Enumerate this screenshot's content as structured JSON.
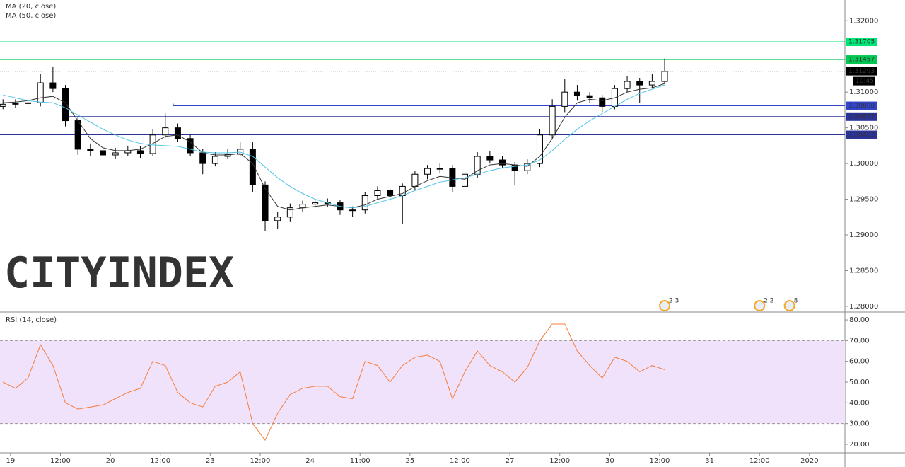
{
  "chart_data": [
    {
      "type": "candlestick",
      "xlim": [
        -0.21,
        16.71
      ],
      "ylim": [
        1.2793,
        1.3229
      ],
      "yticks": [
        {
          "value": 1.32,
          "label": "1.32000"
        },
        {
          "value": 1.31,
          "label": "1.31000"
        },
        {
          "value": 1.305,
          "label": "1.30500"
        },
        {
          "value": 1.3,
          "label": "1.30000"
        },
        {
          "value": 1.295,
          "label": "1.29500"
        },
        {
          "value": 1.29,
          "label": "1.29000"
        },
        {
          "value": 1.285,
          "label": "1.28500"
        },
        {
          "value": 1.28,
          "label": "1.28000"
        }
      ],
      "grid": false,
      "x": [
        -0.15,
        0.1,
        0.35,
        0.6,
        0.85,
        1.1,
        1.35,
        1.6,
        1.85,
        2.1,
        2.35,
        2.6,
        2.85,
        3.1,
        3.35,
        3.6,
        3.85,
        4.1,
        4.35,
        4.6,
        4.85,
        5.1,
        5.35,
        5.6,
        5.85,
        6.1,
        6.35,
        6.6,
        6.85,
        7.1,
        7.35,
        7.6,
        7.85,
        8.1,
        8.35,
        8.6,
        8.85,
        9.1,
        9.35,
        9.6,
        9.85,
        10.1,
        10.35,
        10.6,
        10.85,
        11.1,
        11.35,
        11.6,
        11.85,
        12.1,
        12.35,
        12.6,
        12.85,
        13.1
      ],
      "open": [
        1.308,
        1.3083,
        1.3084,
        1.3085,
        1.3113,
        1.3105,
        1.306,
        1.302,
        1.3018,
        1.3012,
        1.3015,
        1.3018,
        1.3014,
        1.304,
        1.305,
        1.3035,
        1.3015,
        1.3,
        1.301,
        1.3013,
        1.302,
        1.297,
        1.292,
        1.2925,
        1.2938,
        1.2943,
        1.2945,
        1.2945,
        1.2935,
        1.2935,
        1.2955,
        1.2962,
        1.2955,
        1.2968,
        1.2985,
        1.2993,
        1.2993,
        1.2968,
        1.2985,
        1.301,
        1.3005,
        1.2998,
        1.299,
        1.3,
        1.304,
        1.308,
        1.31,
        1.3095,
        1.3092,
        1.308,
        1.3105,
        1.3115,
        1.311,
        1.3115
      ],
      "high": [
        1.309,
        1.309,
        1.3092,
        1.3125,
        1.3135,
        1.311,
        1.3065,
        1.3028,
        1.3024,
        1.3022,
        1.3025,
        1.3024,
        1.3048,
        1.307,
        1.3056,
        1.304,
        1.302,
        1.3016,
        1.302,
        1.303,
        1.303,
        1.2975,
        1.2932,
        1.2944,
        1.2948,
        1.295,
        1.2951,
        1.2949,
        1.294,
        1.296,
        1.2968,
        1.2966,
        1.2972,
        1.299,
        1.2998,
        1.3,
        1.2998,
        1.299,
        1.3016,
        1.3018,
        1.301,
        1.3002,
        1.3006,
        1.3048,
        1.309,
        1.3118,
        1.311,
        1.31,
        1.3096,
        1.311,
        1.3122,
        1.312,
        1.3125,
        1.3147
      ],
      "low": [
        1.3076,
        1.3078,
        1.3079,
        1.308,
        1.31,
        1.3052,
        1.3012,
        1.301,
        1.3,
        1.3006,
        1.301,
        1.3008,
        1.301,
        1.3036,
        1.303,
        1.301,
        1.2985,
        1.2996,
        1.3006,
        1.301,
        1.296,
        1.2905,
        1.2908,
        1.2918,
        1.2932,
        1.2938,
        1.2939,
        1.2928,
        1.2925,
        1.293,
        1.295,
        1.2948,
        1.2915,
        1.2962,
        1.2978,
        1.2986,
        1.296,
        1.2962,
        1.298,
        1.3,
        1.2993,
        1.297,
        1.2985,
        1.2995,
        1.3035,
        1.3072,
        1.3088,
        1.3085,
        1.3072,
        1.3076,
        1.31,
        1.3085,
        1.3105,
        1.3112
      ],
      "close": [
        1.3083,
        1.3084,
        1.3085,
        1.3113,
        1.3105,
        1.306,
        1.302,
        1.3018,
        1.3012,
        1.3015,
        1.3018,
        1.3014,
        1.304,
        1.305,
        1.3035,
        1.3015,
        1.3,
        1.301,
        1.3013,
        1.302,
        1.297,
        1.292,
        1.2925,
        1.2938,
        1.2943,
        1.2945,
        1.2945,
        1.2935,
        1.2935,
        1.2955,
        1.2962,
        1.2955,
        1.2968,
        1.2985,
        1.2993,
        1.2993,
        1.2968,
        1.2985,
        1.301,
        1.3005,
        1.2998,
        1.299,
        1.3,
        1.304,
        1.308,
        1.31,
        1.3095,
        1.3092,
        1.308,
        1.3105,
        1.3115,
        1.311,
        1.3115,
        1.3129
      ],
      "up_color": "#ffffff",
      "down_color": "#000000",
      "series": [
        {
          "name": "MA (20, close)",
          "color": "#333333",
          "values": [
            1.3085,
            1.3086,
            1.3088,
            1.3092,
            1.3094,
            1.3085,
            1.306,
            1.3035,
            1.3022,
            1.3018,
            1.3018,
            1.302,
            1.3028,
            1.3038,
            1.304,
            1.303,
            1.3015,
            1.3012,
            1.3012,
            1.3014,
            1.3,
            1.2965,
            1.294,
            1.2935,
            1.2938,
            1.294,
            1.2942,
            1.294,
            1.2938,
            1.2942,
            1.295,
            1.2954,
            1.2958,
            1.2968,
            1.2976,
            1.2982,
            1.298,
            1.2978,
            1.299,
            1.2998,
            1.3,
            1.2998,
            1.2996,
            1.301,
            1.3035,
            1.3065,
            1.3085,
            1.309,
            1.3088,
            1.3092,
            1.31,
            1.3104,
            1.3106,
            1.3112
          ]
        },
        {
          "name": "MA (50, close)",
          "color": "#4fc3e8",
          "values": [
            1.3096,
            1.3092,
            1.3088,
            1.3086,
            1.3085,
            1.3078,
            1.3068,
            1.3058,
            1.3048,
            1.304,
            1.3033,
            1.3028,
            1.3026,
            1.3025,
            1.3024,
            1.302,
            1.3016,
            1.3015,
            1.3015,
            1.3016,
            1.301,
            1.2995,
            1.298,
            1.2968,
            1.2958,
            1.295,
            1.2945,
            1.294,
            1.2938,
            1.294,
            1.2945,
            1.295,
            1.2955,
            1.2962,
            1.2968,
            1.2974,
            1.2977,
            1.298,
            1.2985,
            1.299,
            1.2994,
            1.2996,
            1.2998,
            1.3005,
            1.3018,
            1.3034,
            1.3048,
            1.306,
            1.307,
            1.308,
            1.309,
            1.3098,
            1.3104,
            1.311
          ]
        }
      ],
      "levels": [
        {
          "value": 1.31705,
          "color": "#00e676"
        },
        {
          "value": 1.31457,
          "color": "#00c853"
        },
        {
          "value": 1.30808,
          "color": "#3344cc",
          "x_start": 3.26
        },
        {
          "value": 1.30657,
          "color": "#2a3399",
          "x_start": 1.13
        },
        {
          "value": 1.30402,
          "color": "#2a3399"
        }
      ],
      "last": 1.31293,
      "countdown": "10:45",
      "events": [
        {
          "x": 13.1,
          "label": "2 3"
        },
        {
          "x": 15.0,
          "label": "2 2"
        },
        {
          "x": 15.6,
          "label": "8"
        }
      ]
    },
    {
      "type": "line",
      "xlim": [
        -0.21,
        16.71
      ],
      "ylim": [
        15.9,
        83.1
      ],
      "yticks": [
        {
          "value": 80,
          "label": "80.00"
        },
        {
          "value": 70,
          "label": "70.00"
        },
        {
          "value": 60,
          "label": "60.00"
        },
        {
          "value": 50,
          "label": "50.00"
        },
        {
          "value": 40,
          "label": "40.00"
        },
        {
          "value": 30,
          "label": "30.00"
        },
        {
          "value": 20,
          "label": "20.00"
        }
      ],
      "band": [
        30,
        70
      ],
      "band_color": "#f1e2fb",
      "xticks": [
        {
          "value": 0,
          "label": "19"
        },
        {
          "value": 1,
          "label": "12:00"
        },
        {
          "value": 2,
          "label": "20"
        },
        {
          "value": 3,
          "label": "12:00"
        },
        {
          "value": 4,
          "label": "23"
        },
        {
          "value": 5,
          "label": "12:00"
        },
        {
          "value": 6,
          "label": "24"
        },
        {
          "value": 7,
          "label": "11:00"
        },
        {
          "value": 8,
          "label": "25"
        },
        {
          "value": 9,
          "label": "12:00"
        },
        {
          "value": 10,
          "label": "27"
        },
        {
          "value": 11,
          "label": "12:00"
        },
        {
          "value": 12,
          "label": "30"
        },
        {
          "value": 13,
          "label": "12:00"
        },
        {
          "value": 14,
          "label": "31"
        },
        {
          "value": 15,
          "label": "12:00"
        },
        {
          "value": 16,
          "label": "2020"
        }
      ],
      "x": [
        -0.15,
        0.1,
        0.35,
        0.6,
        0.85,
        1.1,
        1.35,
        1.6,
        1.85,
        2.1,
        2.35,
        2.6,
        2.85,
        3.1,
        3.35,
        3.6,
        3.85,
        4.1,
        4.35,
        4.6,
        4.85,
        5.1,
        5.35,
        5.6,
        5.85,
        6.1,
        6.35,
        6.6,
        6.85,
        7.1,
        7.35,
        7.6,
        7.85,
        8.1,
        8.35,
        8.6,
        8.85,
        9.1,
        9.35,
        9.6,
        9.85,
        10.1,
        10.35,
        10.6,
        10.85,
        11.1,
        11.35,
        11.6,
        11.85,
        12.1,
        12.35,
        12.6,
        12.85,
        13.1
      ],
      "series": [
        {
          "name": "RSI (14, close)",
          "color": "#f57c3a",
          "values": [
            50,
            47,
            52,
            68,
            58,
            40,
            37,
            38,
            39,
            42,
            45,
            47,
            60,
            58,
            45,
            40,
            38,
            48,
            50,
            55,
            30,
            22,
            35,
            44,
            47,
            48,
            48,
            43,
            42,
            60,
            58,
            50,
            58,
            62,
            63,
            60,
            42,
            55,
            65,
            58,
            55,
            50,
            57,
            70,
            78,
            78,
            65,
            58,
            52,
            62,
            60,
            55,
            58,
            56
          ]
        }
      ]
    }
  ],
  "watermark": {
    "left": "CITY",
    "right": "INDEX"
  }
}
